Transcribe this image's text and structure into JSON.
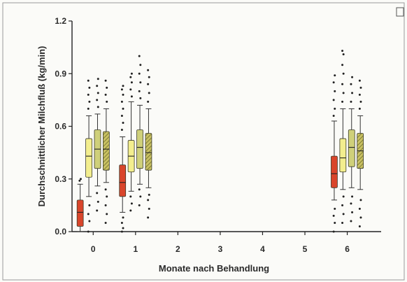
{
  "chart_data": {
    "type": "box",
    "xlabel": "Monate nach Behandlung",
    "ylabel": "Durchschnittlicher Milchfluß (kg/min)",
    "ylim": [
      0,
      1.2
    ],
    "yticks": [
      "0.0",
      "0.3",
      "0.6",
      "0.9",
      "1.2"
    ],
    "xticks": [
      "0",
      "1",
      "2",
      "3",
      "4",
      "5",
      "6"
    ],
    "xlim": [
      -0.5,
      6.8
    ],
    "grid": false,
    "legend": "none",
    "series": [
      {
        "fill": "#d9452b",
        "pattern": "solid",
        "boxes": [
          {
            "x": 0,
            "q1": 0.03,
            "median": 0.11,
            "q3": 0.18,
            "whisker_low": 0.0,
            "whisker_high": 0.27,
            "outliers": [
              0.29,
              0.3
            ]
          },
          {
            "x": 1,
            "q1": 0.2,
            "median": 0.28,
            "q3": 0.38,
            "whisker_low": 0.11,
            "whisker_high": 0.54,
            "outliers": [
              0.0,
              0.02,
              0.05,
              0.08,
              0.58,
              0.62,
              0.66,
              0.7,
              0.74,
              0.78,
              0.81,
              0.83
            ]
          },
          {
            "x": 6,
            "q1": 0.25,
            "median": 0.33,
            "q3": 0.43,
            "whisker_low": 0.18,
            "whisker_high": 0.63,
            "outliers": [
              0.0,
              0.05,
              0.09,
              0.13,
              0.66,
              0.7,
              0.75,
              0.8,
              0.85,
              0.89
            ]
          }
        ]
      },
      {
        "fill": "#f3ee8e",
        "pattern": "solid",
        "boxes": [
          {
            "x": 0,
            "q1": 0.31,
            "median": 0.43,
            "q3": 0.53,
            "whisker_low": 0.2,
            "whisker_high": 0.66,
            "outliers": [
              0.0,
              0.06,
              0.1,
              0.15,
              0.7,
              0.74,
              0.78,
              0.82,
              0.86
            ]
          },
          {
            "x": 1,
            "q1": 0.34,
            "median": 0.43,
            "q3": 0.52,
            "whisker_low": 0.23,
            "whisker_high": 0.74,
            "outliers": [
              0.12,
              0.16,
              0.2,
              0.77,
              0.81,
              0.85,
              0.88,
              0.9
            ]
          },
          {
            "x": 6,
            "q1": 0.34,
            "median": 0.42,
            "q3": 0.53,
            "whisker_low": 0.24,
            "whisker_high": 0.7,
            "outliers": [
              0.05,
              0.1,
              0.15,
              0.2,
              0.74,
              0.79,
              0.84,
              0.9,
              0.95,
              1.01,
              1.03
            ]
          }
        ]
      },
      {
        "fill": "#cfd07a",
        "pattern": "solid",
        "boxes": [
          {
            "x": 0,
            "q1": 0.36,
            "median": 0.47,
            "q3": 0.58,
            "whisker_low": 0.26,
            "whisker_high": 0.67,
            "outliers": [
              0.12,
              0.17,
              0.22,
              0.71,
              0.75,
              0.79,
              0.83,
              0.87
            ]
          },
          {
            "x": 1,
            "q1": 0.36,
            "median": 0.48,
            "q3": 0.58,
            "whisker_low": 0.27,
            "whisker_high": 0.72,
            "outliers": [
              0.15,
              0.2,
              0.24,
              0.76,
              0.8,
              0.85,
              0.9,
              0.95,
              1.0
            ]
          },
          {
            "x": 6,
            "q1": 0.37,
            "median": 0.48,
            "q3": 0.58,
            "whisker_low": 0.25,
            "whisker_high": 0.7,
            "outliers": [
              0.06,
              0.11,
              0.16,
              0.2,
              0.74,
              0.79,
              0.84,
              0.88
            ]
          }
        ]
      },
      {
        "fill": "#c9c162",
        "pattern": "hatched",
        "boxes": [
          {
            "x": 0,
            "q1": 0.35,
            "median": 0.47,
            "q3": 0.57,
            "whisker_low": 0.28,
            "whisker_high": 0.7,
            "outliers": [
              0.05,
              0.1,
              0.15,
              0.2,
              0.24,
              0.74,
              0.78,
              0.82,
              0.86
            ]
          },
          {
            "x": 1,
            "q1": 0.35,
            "median": 0.45,
            "q3": 0.56,
            "whisker_low": 0.25,
            "whisker_high": 0.7,
            "outliers": [
              0.08,
              0.13,
              0.18,
              0.21,
              0.74,
              0.79,
              0.84,
              0.88,
              0.92
            ]
          },
          {
            "x": 6,
            "q1": 0.36,
            "median": 0.46,
            "q3": 0.56,
            "whisker_low": 0.24,
            "whisker_high": 0.66,
            "outliers": [
              0.03,
              0.08,
              0.13,
              0.18,
              0.7,
              0.74,
              0.78,
              0.82,
              0.86
            ]
          }
        ]
      }
    ]
  }
}
